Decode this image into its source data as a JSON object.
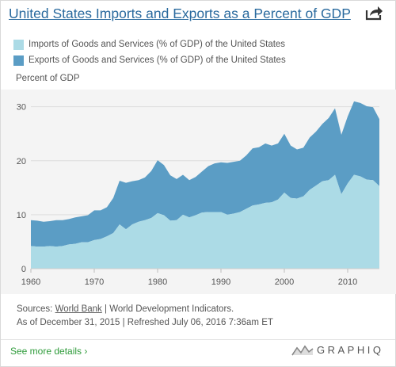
{
  "header": {
    "title": "United States Imports and Exports as a Percent of GDP",
    "share_icon": "share-icon"
  },
  "colors": {
    "imports": "#acdbe6",
    "exports": "#5b9dc5",
    "plot_bg": "#f4f4f4",
    "title": "#2a6a9e",
    "link_green": "#2e9b3a"
  },
  "chart_data": {
    "type": "area",
    "stacked": true,
    "ylabel": "Percent of GDP",
    "ylim": [
      0,
      32
    ],
    "yticks": [
      0,
      10,
      20,
      30
    ],
    "xlim": [
      1960,
      2015
    ],
    "xticks": [
      1960,
      1970,
      1980,
      1990,
      2000,
      2010
    ],
    "grid": true,
    "legend_position": "top-left",
    "x": [
      1960,
      1961,
      1962,
      1963,
      1964,
      1965,
      1966,
      1967,
      1968,
      1969,
      1970,
      1971,
      1972,
      1973,
      1974,
      1975,
      1976,
      1977,
      1978,
      1979,
      1980,
      1981,
      1982,
      1983,
      1984,
      1985,
      1986,
      1987,
      1988,
      1989,
      1990,
      1991,
      1992,
      1993,
      1994,
      1995,
      1996,
      1997,
      1998,
      1999,
      2000,
      2001,
      2002,
      2003,
      2004,
      2005,
      2006,
      2007,
      2008,
      2009,
      2010,
      2011,
      2012,
      2013,
      2014,
      2015
    ],
    "series": [
      {
        "name": "Imports of Goods and Services (% of GDP) of the United States",
        "values": [
          4.2,
          4.1,
          4.1,
          4.2,
          4.1,
          4.2,
          4.5,
          4.6,
          4.9,
          4.9,
          5.3,
          5.5,
          6.0,
          6.6,
          8.2,
          7.3,
          8.2,
          8.7,
          9.0,
          9.4,
          10.3,
          9.9,
          8.9,
          9.0,
          10.0,
          9.5,
          9.9,
          10.4,
          10.5,
          10.5,
          10.5,
          10.0,
          10.2,
          10.5,
          11.1,
          11.7,
          11.9,
          12.2,
          12.3,
          12.8,
          14.1,
          13.1,
          13.0,
          13.4,
          14.6,
          15.4,
          16.2,
          16.4,
          17.4,
          13.8,
          15.8,
          17.4,
          17.1,
          16.5,
          16.4,
          15.3
        ]
      },
      {
        "name": "Exports of Goods and Services (% of GDP) of the United States",
        "values": [
          4.8,
          4.8,
          4.6,
          4.6,
          4.9,
          4.8,
          4.7,
          4.9,
          4.8,
          5.0,
          5.5,
          5.3,
          5.4,
          6.5,
          8.1,
          8.6,
          8.0,
          7.7,
          7.9,
          8.7,
          9.8,
          9.3,
          8.4,
          7.6,
          7.4,
          6.9,
          7.1,
          7.6,
          8.5,
          9.0,
          9.2,
          9.6,
          9.6,
          9.5,
          9.9,
          10.6,
          10.6,
          11.0,
          10.5,
          10.4,
          10.9,
          9.7,
          9.1,
          9.0,
          9.7,
          10.0,
          10.6,
          11.5,
          12.3,
          11.0,
          12.4,
          13.6,
          13.6,
          13.6,
          13.5,
          12.4
        ]
      }
    ]
  },
  "footer": {
    "sources_prefix": "Sources: ",
    "sources_link": "World Bank",
    "sources_suffix": " | World Development Indicators.",
    "as_of": "As of December 31, 2015 | Refreshed July 06, 2016 7:36am ET",
    "see_more": "See more details ›",
    "brand": "GRAPHIQ",
    "brand_icon": "graphiq-logo-icon"
  }
}
